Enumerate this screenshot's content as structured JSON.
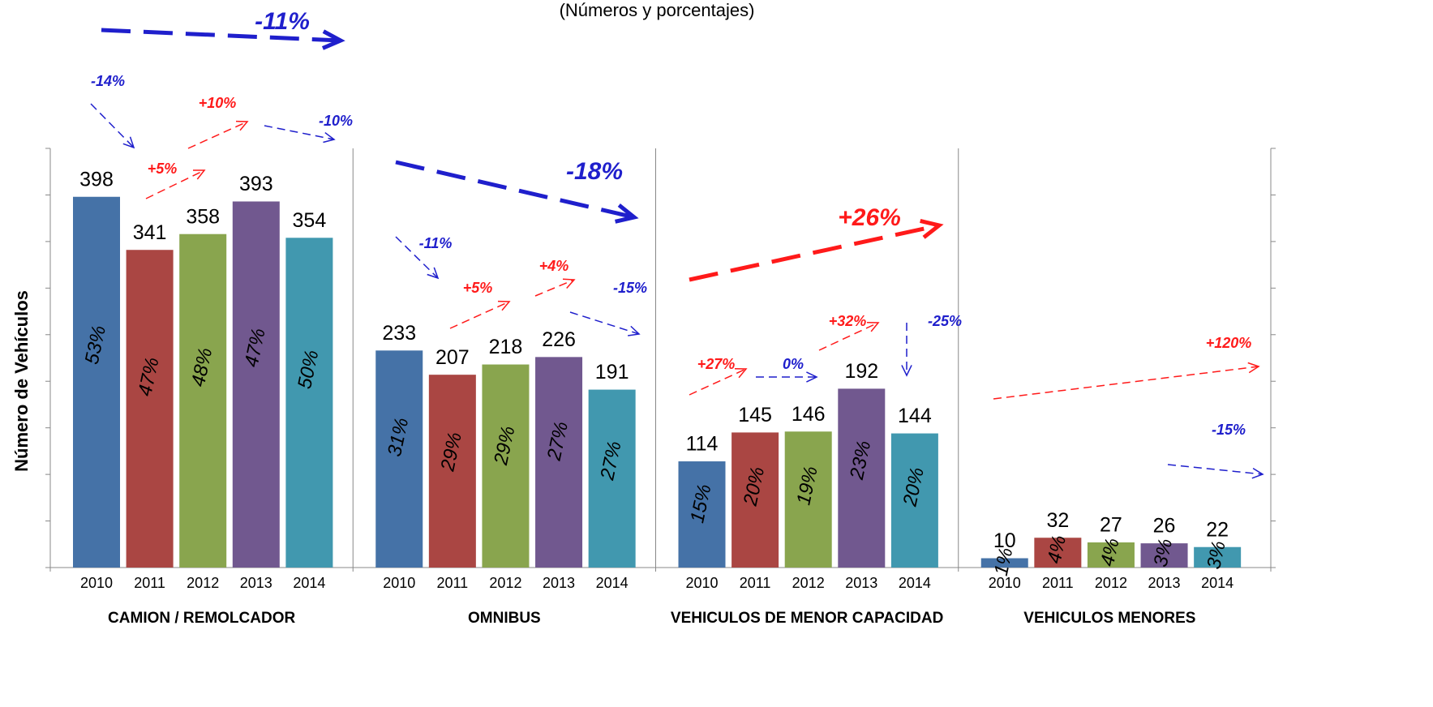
{
  "chart_data": {
    "type": "bar",
    "subtitle": "(Números y porcentajes)",
    "y_label": "Número de Vehículos",
    "categories": [
      "CAMION / REMOLCADOR",
      "OMNIBUS",
      "VEHICULOS DE MENOR CAPACIDAD",
      "VEHICULOS MENORES"
    ],
    "series": [
      {
        "name": "2010",
        "color": "#4572a7",
        "values": [
          398,
          233,
          114,
          10
        ],
        "share_labels": [
          "53%",
          "31%",
          "15%",
          "1%"
        ]
      },
      {
        "name": "2011",
        "color": "#aa4643",
        "values": [
          341,
          207,
          145,
          32
        ],
        "share_labels": [
          "47%",
          "29%",
          "20%",
          "4%"
        ]
      },
      {
        "name": "2012",
        "color": "#89a54e",
        "values": [
          358,
          218,
          146,
          27
        ],
        "share_labels": [
          "48%",
          "29%",
          "19%",
          "4%"
        ]
      },
      {
        "name": "2013",
        "color": "#71588f",
        "values": [
          393,
          226,
          192,
          26
        ],
        "share_labels": [
          "47%",
          "27%",
          "23%",
          "3%"
        ]
      },
      {
        "name": "2014",
        "color": "#4198af",
        "values": [
          354,
          191,
          144,
          22
        ],
        "share_labels": [
          "50%",
          "27%",
          "20%",
          "3%"
        ]
      }
    ],
    "ylim": [
      0,
      450
    ],
    "yticks": [
      0,
      50,
      100,
      150,
      200,
      250,
      300,
      350,
      400,
      450
    ],
    "annotations": [
      {
        "text": "-11%",
        "color": "#1f1fcc"
      },
      {
        "text": "-14%",
        "color": "#1f1fcc"
      },
      {
        "text": "+10%",
        "color": "#ff1a1a"
      },
      {
        "text": "-10%",
        "color": "#1f1fcc"
      },
      {
        "text": "+5%",
        "color": "#ff1a1a"
      },
      {
        "text": "-18%",
        "color": "#1f1fcc"
      },
      {
        "text": "+26%",
        "color": "#ff1a1a"
      },
      {
        "text": "-11%",
        "color": "#1f1fcc"
      },
      {
        "text": "+5%",
        "color": "#ff1a1a"
      },
      {
        "text": "+4%",
        "color": "#ff1a1a"
      },
      {
        "text": "-15%",
        "color": "#1f1fcc"
      },
      {
        "text": "+32%",
        "color": "#ff1a1a"
      },
      {
        "text": "-25%",
        "color": "#1f1fcc"
      },
      {
        "text": "+27%",
        "color": "#ff1a1a"
      },
      {
        "text": "0%",
        "color": "#1f1fcc"
      },
      {
        "text": "+120%",
        "color": "#ff1a1a"
      },
      {
        "text": "-15%",
        "color": "#1f1fcc"
      }
    ]
  }
}
